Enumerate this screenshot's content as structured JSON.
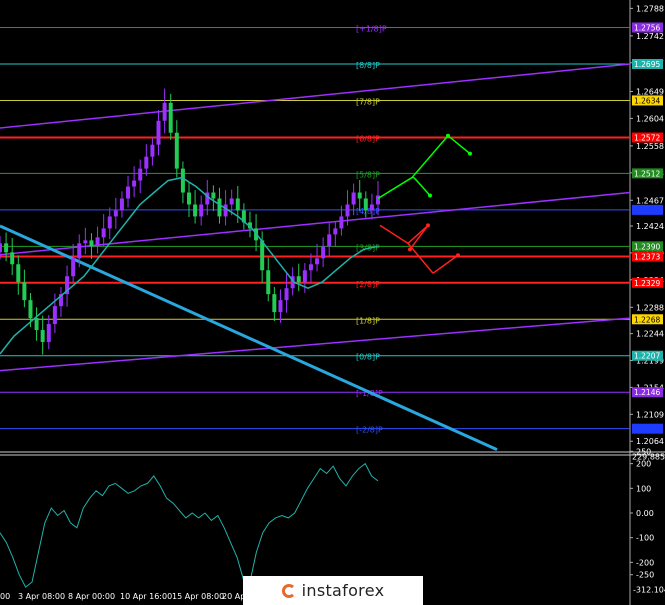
{
  "chart_data": {
    "type": "candlestick",
    "price_axis": {
      "ticks": [
        "1.2788",
        "1.2742",
        "1.2697",
        "1.2649",
        "1.2604",
        "1.2558",
        "1.2513",
        "1.2467",
        "1.2424",
        "1.2379",
        "1.2334",
        "1.2288",
        "1.2244",
        "1.2199",
        "1.2154",
        "1.2109",
        "1.2064"
      ],
      "ylim": [
        1.2046,
        1.2802
      ]
    },
    "murrey_levels": [
      {
        "label": "[+1/8]P",
        "value": 1.2756,
        "tag": "1.2756",
        "color": "#9b30ff",
        "tag_bg": "#8a2be2",
        "tag_fg": "#ffffff"
      },
      {
        "label": "[8/8]P",
        "value": 1.2695,
        "tag": "1.2695",
        "color": "#20c8c8",
        "tag_bg": "#20b2aa",
        "tag_fg": "#ffffff"
      },
      {
        "label": "[7/8]P",
        "value": 1.2634,
        "tag": "1.2634",
        "color": "#cccc33",
        "tag_bg": "#ffd700",
        "tag_fg": "#000000"
      },
      {
        "label": "[6/8]P",
        "value": 1.2572,
        "tag": "1.2572",
        "color": "#ff2020",
        "tag_bg": "#ff0000",
        "tag_fg": "#ffffff"
      },
      {
        "label": "[5/8]P",
        "value": 1.2512,
        "tag": "1.2512",
        "color": "#20a020",
        "tag_bg": "#228b22",
        "tag_fg": "#ffffff"
      },
      {
        "label": "[4/8]P",
        "value": 1.2451,
        "tag": "",
        "color": "#3050ff",
        "tag_bg": "#1e3cff",
        "tag_fg": "#ffffff"
      },
      {
        "label": "[3/8]P",
        "value": 1.239,
        "tag": "1.2390",
        "color": "#20a020",
        "tag_bg": "#228b22",
        "tag_fg": "#ffffff"
      },
      {
        "label": "[2/8]P",
        "value": 1.2329,
        "tag": "1.2329",
        "color": "#ff2020",
        "tag_bg": "#ff0000",
        "tag_fg": "#ffffff"
      },
      {
        "label": "[1/8]P",
        "value": 1.2268,
        "tag": "1.2268",
        "color": "#cccc33",
        "tag_bg": "#ffd700",
        "tag_fg": "#000000"
      },
      {
        "label": "[0/8]P",
        "value": 1.2207,
        "tag": "1.2207",
        "color": "#20c8c8",
        "tag_bg": "#20b2aa",
        "tag_fg": "#ffffff"
      },
      {
        "label": "[-1/8]P",
        "value": 1.2146,
        "tag": "1.2146",
        "color": "#9b30ff",
        "tag_bg": "#8a2be2",
        "tag_fg": "#ffffff"
      },
      {
        "label": "[-2/8]P",
        "value": 1.2085,
        "tag": "",
        "color": "#3050ff",
        "tag_bg": "#1e3cff",
        "tag_fg": "#ffffff"
      }
    ],
    "current_price": {
      "value": 1.2373,
      "tag": "1.2373"
    },
    "candles": {
      "closes": [
        1.2395,
        1.238,
        1.236,
        1.233,
        1.23,
        1.227,
        1.225,
        1.223,
        1.226,
        1.229,
        1.231,
        1.234,
        1.237,
        1.2395,
        1.24,
        1.239,
        1.2405,
        1.242,
        1.244,
        1.245,
        1.247,
        1.249,
        1.25,
        1.252,
        1.254,
        1.256,
        1.26,
        1.263,
        1.258,
        1.252,
        1.248,
        1.246,
        1.244,
        1.246,
        1.248,
        1.247,
        1.244,
        1.246,
        1.247,
        1.245,
        1.243,
        1.242,
        1.24,
        1.235,
        1.231,
        1.228,
        1.23,
        1.232,
        1.234,
        1.233,
        1.235,
        1.236,
        1.237,
        1.239,
        1.241,
        1.242,
        1.244,
        1.246,
        1.248,
        1.247,
        1.245,
        1.246,
        1.2475
      ],
      "x_range": [
        0,
        378
      ]
    },
    "ma_line": [
      1.221,
      1.224,
      1.226,
      1.228,
      1.23,
      1.232,
      1.234,
      1.237,
      1.24,
      1.243,
      1.246,
      1.248,
      1.25,
      1.2505,
      1.249,
      1.247,
      1.2455,
      1.244,
      1.242,
      1.239,
      1.236,
      1.233,
      1.232,
      1.233,
      1.235,
      1.237,
      1.2385,
      1.239
    ],
    "trend_lines": [
      {
        "color": "#9b30ff",
        "from": [
          0,
          1.2588
        ],
        "to": [
          630,
          1.2695
        ]
      },
      {
        "color": "#9b30ff",
        "from": [
          0,
          1.2376
        ],
        "to": [
          630,
          1.248
        ]
      },
      {
        "color": "#9b30ff",
        "from": [
          0,
          1.2182
        ],
        "to": [
          630,
          1.227
        ]
      },
      {
        "color": "#29a8e0",
        "from": [
          0,
          1.2424
        ],
        "to": [
          497,
          1.205
        ]
      }
    ],
    "forecast_arrows": {
      "up": {
        "color": "#00ff00",
        "points": [
          [
            378,
            1.247
          ],
          [
            412,
            1.2505
          ],
          [
            448,
            1.2575
          ],
          [
            470,
            1.2545
          ],
          [
            414,
            1.2505
          ],
          [
            430,
            1.2475
          ]
        ]
      },
      "down": {
        "color": "#ff2020",
        "points": [
          [
            380,
            1.2425
          ],
          [
            408,
            1.2395
          ],
          [
            428,
            1.2425
          ],
          [
            410,
            1.2385
          ],
          [
            433,
            1.2345
          ],
          [
            458,
            1.2375
          ]
        ]
      }
    },
    "time_axis": {
      "labels": [
        "00",
        "3 Apr 08:00",
        "8 Apr 00:00",
        "10 Apr 16:00",
        "15 Apr 08:00",
        "20 Apr"
      ]
    },
    "oscillator": {
      "ticks": [
        "250",
        "200",
        "100",
        "0.00",
        "-100",
        "-200",
        "-250"
      ],
      "max_label": "229.8856",
      "min_label": "-312.104",
      "ylim": [
        -320,
        235
      ],
      "values": [
        -80,
        -120,
        -180,
        -250,
        -300,
        -280,
        -160,
        -40,
        20,
        -10,
        10,
        -40,
        -60,
        20,
        60,
        90,
        70,
        110,
        120,
        100,
        80,
        90,
        110,
        120,
        150,
        110,
        60,
        40,
        10,
        -20,
        0,
        -20,
        0,
        -30,
        -10,
        -60,
        -120,
        -180,
        -270,
        -280,
        -160,
        -80,
        -40,
        -20,
        -10,
        -20,
        0,
        50,
        100,
        140,
        180,
        160,
        190,
        140,
        110,
        150,
        180,
        200,
        150,
        130
      ]
    }
  },
  "branding": {
    "logo_text": "instaforex"
  }
}
